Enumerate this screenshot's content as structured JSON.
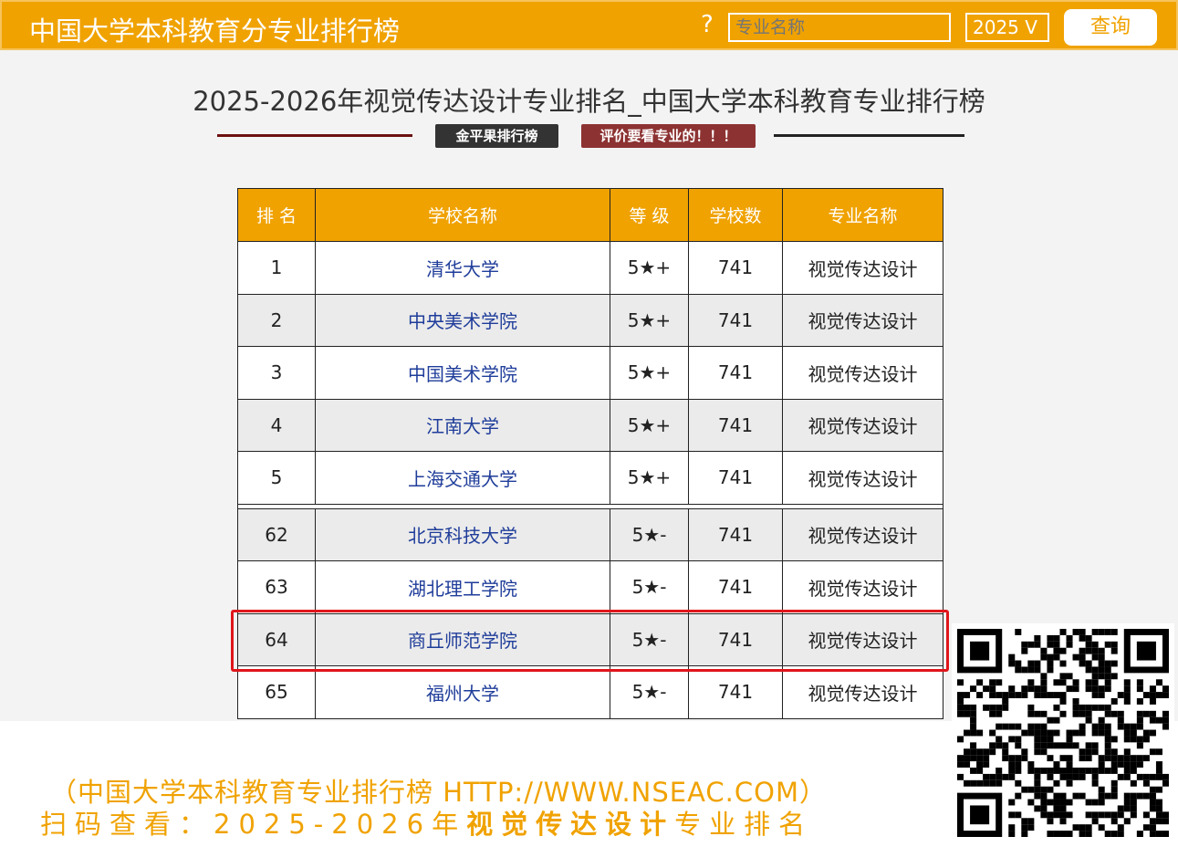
{
  "header": {
    "site_title": "中国大学本科教育分专业排行榜",
    "help": "?",
    "search_placeholder": "专业名称",
    "year": "2025 V",
    "query_button": "查询"
  },
  "page_title": "2025-2026年视觉传达设计专业排名_中国大学本科教育专业排行榜",
  "tags": {
    "left": "金平果排行榜",
    "right": "评价要看专业的！！！"
  },
  "colors": {
    "brand": "#f0a200",
    "highlight": "#e0161b",
    "tag_left": "#333333",
    "tag_right": "#8d3232"
  },
  "table": {
    "headers": [
      "排 名",
      "学校名称",
      "等 级",
      "学校数",
      "专业名称"
    ],
    "rows": [
      [
        "1",
        "清华大学",
        "5★+",
        "741",
        "视觉传达设计"
      ],
      [
        "2",
        "中央美术学院",
        "5★+",
        "741",
        "视觉传达设计"
      ],
      [
        "3",
        "中国美术学院",
        "5★+",
        "741",
        "视觉传达设计"
      ],
      [
        "4",
        "江南大学",
        "5★+",
        "741",
        "视觉传达设计"
      ],
      [
        "5",
        "上海交通大学",
        "5★+",
        "741",
        "视觉传达设计"
      ],
      [
        "62",
        "北京科技大学",
        "5★-",
        "741",
        "视觉传达设计"
      ],
      [
        "63",
        "湖北理工学院",
        "5★-",
        "741",
        "视觉传达设计"
      ],
      [
        "64",
        "商丘师范学院",
        "5★-",
        "741",
        "视觉传达设计"
      ],
      [
        "65",
        "福州大学",
        "5★-",
        "741",
        "视觉传达设计"
      ]
    ],
    "highlighted_rank": "64"
  },
  "footer": {
    "line1": "（中国大学本科教育专业排行榜 HTTP://WWW.NSEAC.COM）",
    "line2_prefix": "扫码查看：2025-2026年",
    "line2_bold": "视觉传达设计",
    "line2_suffix": "专业排名"
  },
  "qr_icon": "qr-code"
}
